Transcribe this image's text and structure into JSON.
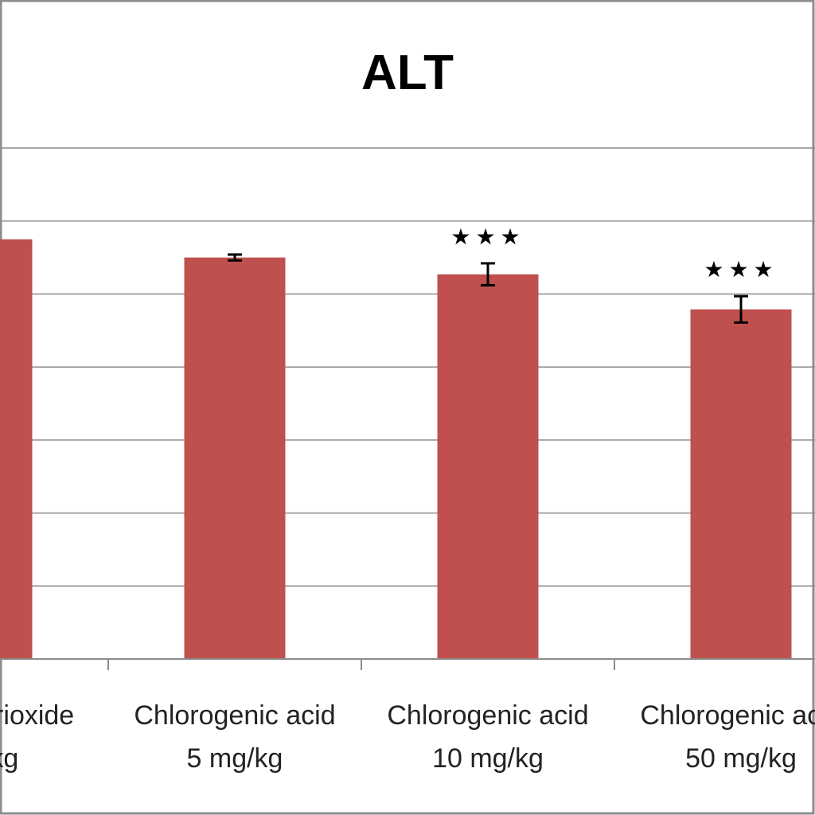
{
  "chart_data": {
    "type": "bar",
    "title": "ALT",
    "xlabel": "",
    "ylabel": "",
    "categories": [
      [
        "Arsenic trioxide",
        "mg/kg"
      ],
      [
        "Chlorogenic acid",
        "5 mg/kg"
      ],
      [
        "Chlorogenic acid",
        "10 mg/kg"
      ],
      [
        "Chlorogenic acid",
        "50 mg/kg"
      ]
    ],
    "values": [
      5.75,
      5.5,
      5.27,
      4.79
    ],
    "errors": [
      0,
      0.04,
      0.15,
      0.18
    ],
    "significance": [
      "",
      "",
      "★★★",
      "★★★"
    ],
    "ylim": [
      0,
      7
    ],
    "grid": true,
    "bar_color": "#c0504d",
    "grid_color": "#8c8c8c"
  }
}
